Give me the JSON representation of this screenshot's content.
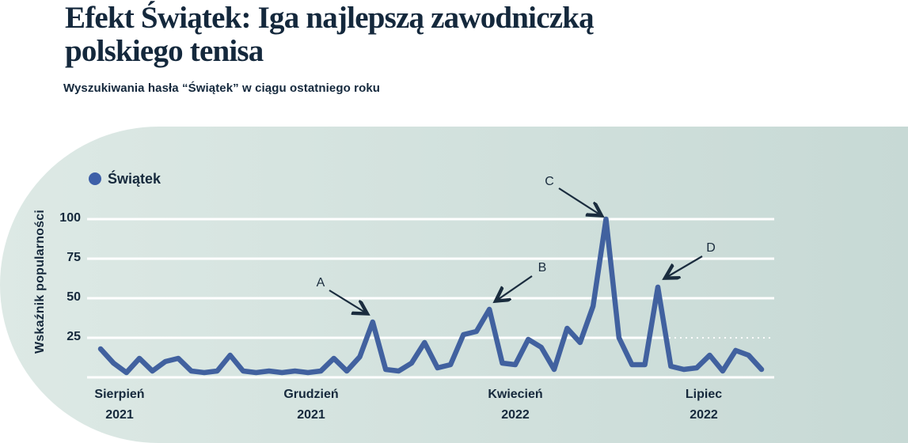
{
  "header": {
    "title_line1": "Efekt Świątek: Iga najlepszą zawodniczką",
    "title_line2": "polskiego tenisa",
    "subtitle": "Wyszukiwania hasła “Świątek” w ciągu ostatniego roku"
  },
  "legend": {
    "label": "Świątek"
  },
  "colors": {
    "title_text": "#14283c",
    "axis_text": "#16293c",
    "line": "#41619f",
    "legend_dot": "#3d5fa8",
    "gridline": "#ffffff",
    "annotation": "#1a2c3e",
    "card_bg_left": "#dde9e5",
    "card_bg_right": "#c7d9d5"
  },
  "chart_data": {
    "type": "line",
    "title": "Efekt Świątek: Iga najlepszą zawodniczką polskiego tenisa",
    "subtitle": "Wyszukiwania hasła “Świątek” w ciągu ostatniego roku",
    "ylabel": "Wskaźnik popularności",
    "xlabel": "",
    "ylim": [
      0,
      100
    ],
    "yticks": [
      25,
      50,
      75,
      100
    ],
    "grid": "horizontal-white",
    "legend_position": "top-left",
    "x_unit": "week",
    "x_range": "Sierpień 2021 – Lipiec 2022",
    "x_axis_labels": [
      {
        "month": "Sierpień",
        "year": "2021"
      },
      {
        "month": "Grudzień",
        "year": "2021"
      },
      {
        "month": "Kwiecień",
        "year": "2022"
      },
      {
        "month": "Lipiec",
        "year": "2022"
      }
    ],
    "series": [
      {
        "name": "Świątek",
        "color": "#41619f",
        "values": [
          18,
          9,
          3,
          12,
          4,
          10,
          12,
          4,
          3,
          4,
          14,
          4,
          3,
          4,
          3,
          4,
          3,
          4,
          12,
          4,
          13,
          35,
          5,
          4,
          9,
          22,
          6,
          8,
          27,
          29,
          43,
          9,
          8,
          24,
          19,
          5,
          31,
          22,
          45,
          100,
          25,
          8,
          8,
          57,
          7,
          5,
          6,
          14,
          4,
          17,
          14,
          5
        ]
      }
    ],
    "annotations": [
      {
        "label": "A",
        "week_index": 21,
        "value": 35
      },
      {
        "label": "B",
        "week_index": 30,
        "value": 43
      },
      {
        "label": "C",
        "week_index": 39,
        "value": 100
      },
      {
        "label": "D",
        "week_index": 43,
        "value": 57
      }
    ]
  }
}
